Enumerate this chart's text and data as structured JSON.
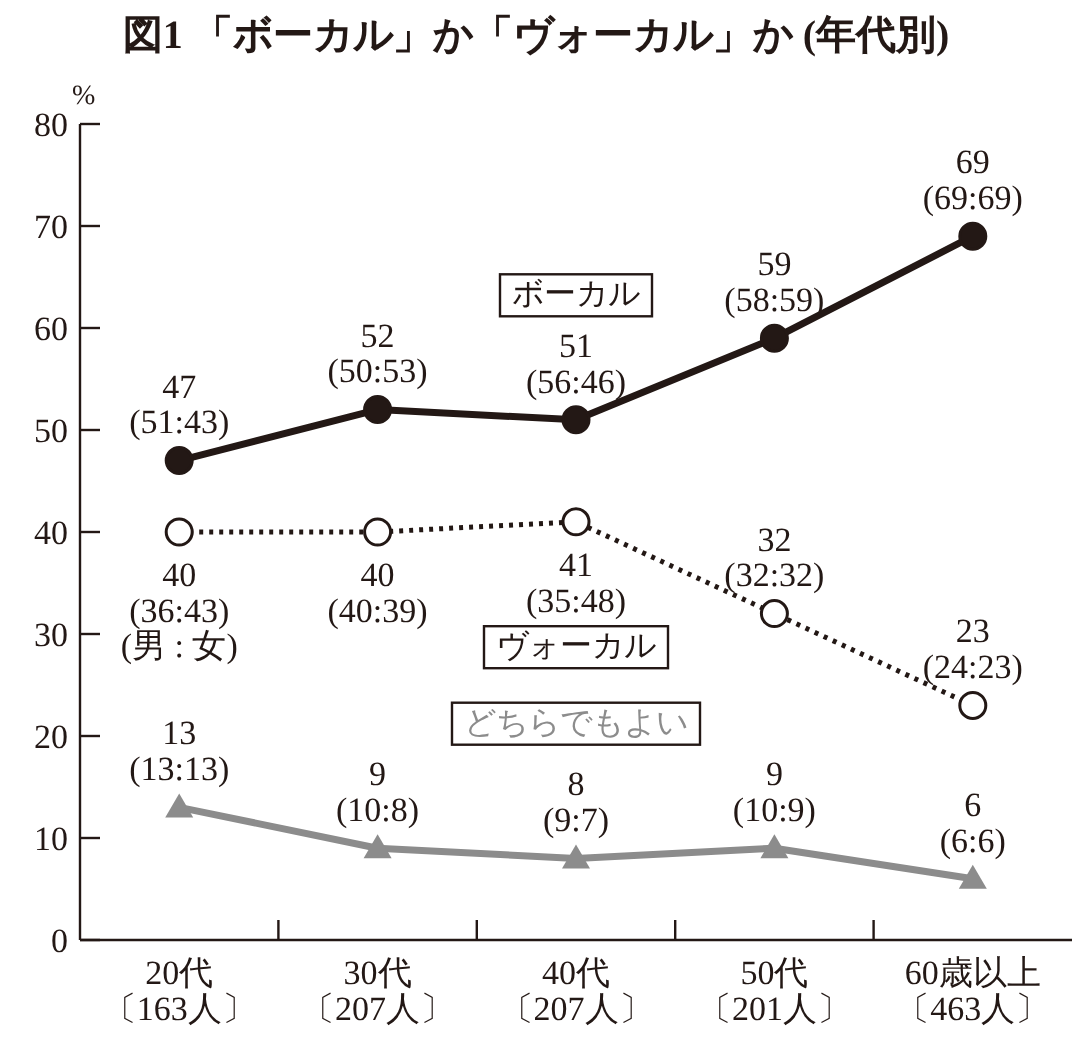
{
  "chart_data": {
    "type": "line",
    "title": "図1 「ボーカル」か「ヴォーカル」か (年代別)",
    "ylabel": "%",
    "categories": [
      "20代〔163人〕",
      "30代〔207人〕",
      "40代〔207人〕",
      "50代〔201人〕",
      "60歳以上〔463人〕"
    ],
    "ylim": [
      0,
      80
    ],
    "yticks": [
      0,
      10,
      20,
      30,
      40,
      50,
      60,
      70,
      80
    ],
    "grid": false,
    "series": [
      {
        "name": "ボーカル",
        "color": "#231815",
        "marker": "circle",
        "line_style": "solid",
        "values": [
          47,
          52,
          51,
          59,
          69
        ],
        "value_labels": [
          "47\n(51:43)",
          "52\n(50:53)",
          "51\n(56:46)",
          "59\n(58:59)",
          "69\n(69:69)"
        ]
      },
      {
        "name": "ヴォーカル",
        "color": "#231815",
        "marker": "circle",
        "line_style": "dotted",
        "values": [
          40,
          40,
          41,
          32,
          23
        ],
        "value_labels": [
          "40\n(36:43)\n(男 : 女)",
          "40\n(40:39)",
          "41\n(35:48)",
          "32\n(32:32)",
          "23\n(24:23)"
        ]
      },
      {
        "name": "どちらでもよい",
        "color": "#8c8c8c",
        "marker": "triangle",
        "line_style": "solid",
        "values": [
          13,
          9,
          8,
          9,
          6
        ],
        "value_labels": [
          "13\n(13:13)",
          "9\n(10:8)",
          "8\n(9:7)",
          "9\n(10:9)",
          "6\n(6:6)"
        ]
      }
    ]
  }
}
